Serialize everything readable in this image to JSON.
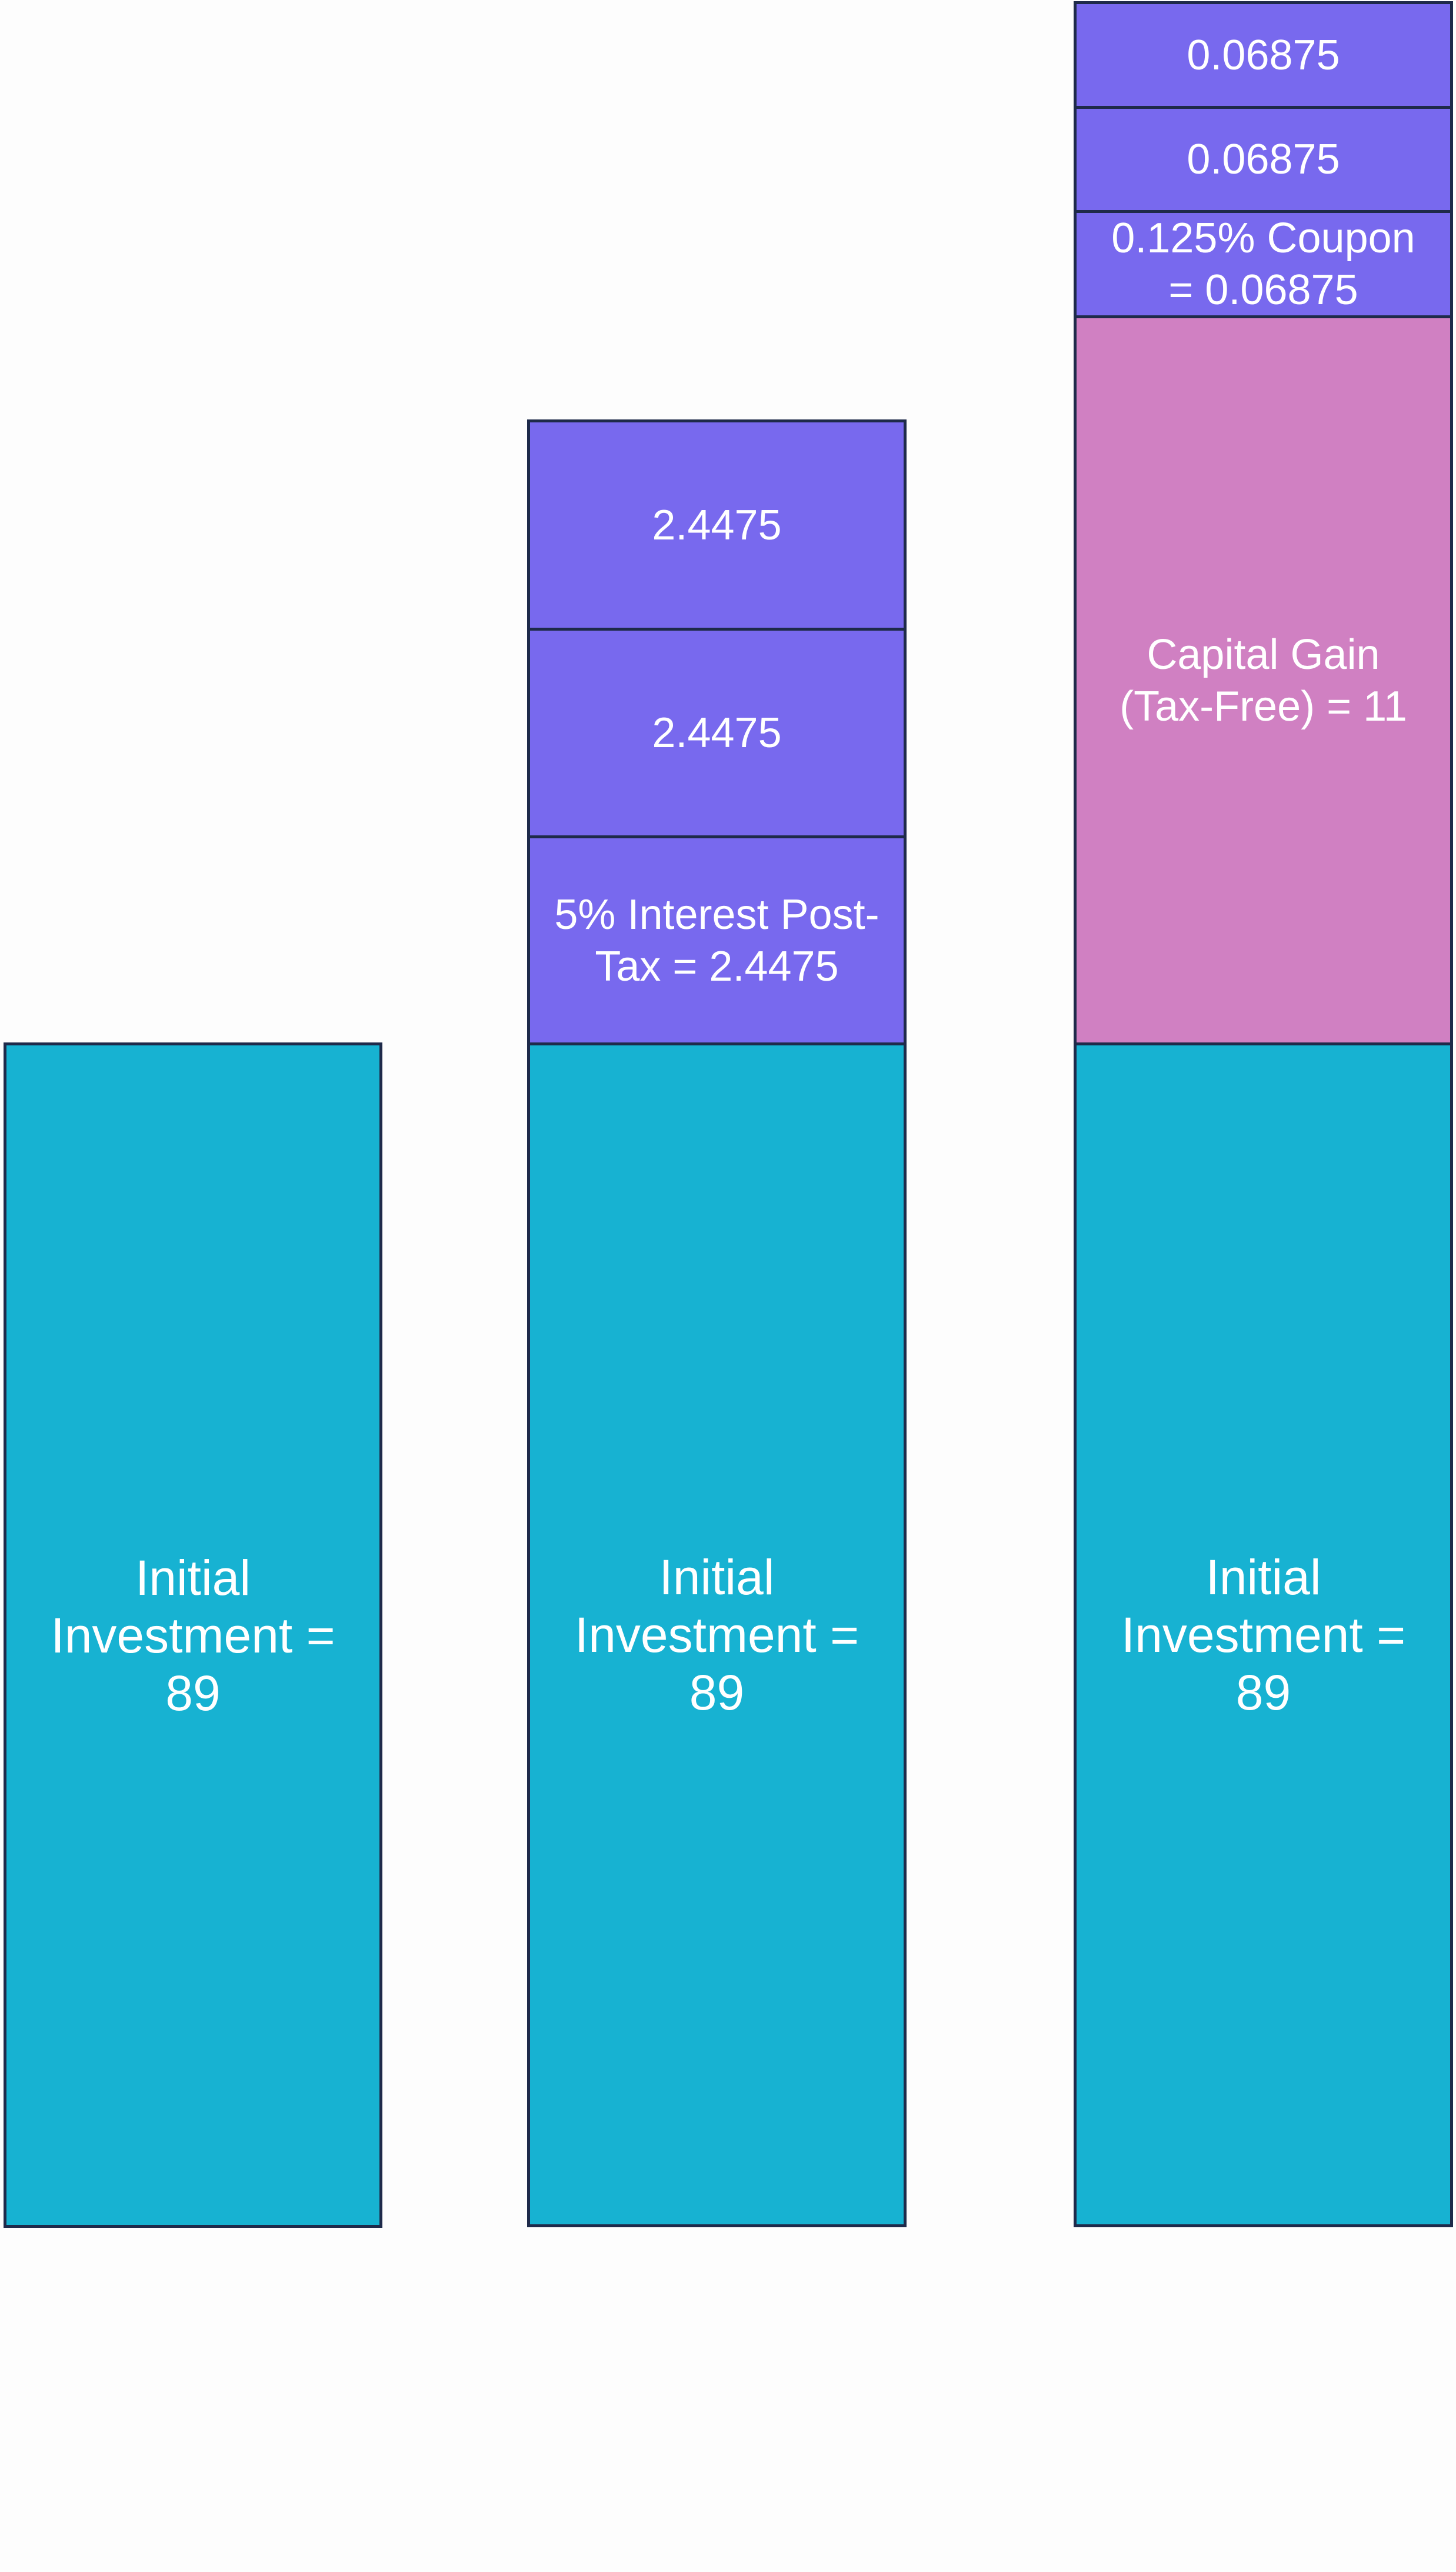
{
  "colors": {
    "investment": "#17b2d2",
    "interest": "#7869ee",
    "capital_gain": "#d080c2",
    "border": "#1e2a4a",
    "text": "#ffffff",
    "background": "#fdfdfd"
  },
  "columns": [
    {
      "investment": {
        "label_line1": "Initial",
        "label_line2": "Investment =",
        "label_line3": "89",
        "value": 89
      }
    },
    {
      "investment": {
        "label_line1": "Initial",
        "label_line2": "Investment =",
        "label_line3": "89",
        "value": 89
      },
      "interest": [
        {
          "label_line1": "5% Interest Post-",
          "label_line2": "Tax = 2.4475",
          "value": 2.4475
        },
        {
          "label": "2.4475",
          "value": 2.4475
        },
        {
          "label": "2.4475",
          "value": 2.4475
        }
      ]
    },
    {
      "investment": {
        "label_line1": "Initial",
        "label_line2": "Investment =",
        "label_line3": "89",
        "value": 89
      },
      "capital_gain": {
        "label_line1": "Capital Gain",
        "label_line2": "(Tax-Free) = 11",
        "value": 11
      },
      "coupons": [
        {
          "label_line1": "0.125% Coupon",
          "label_line2": "= 0.06875",
          "value": 0.06875
        },
        {
          "label": "0.06875",
          "value": 0.06875
        },
        {
          "label": "0.06875",
          "value": 0.06875
        }
      ]
    }
  ]
}
